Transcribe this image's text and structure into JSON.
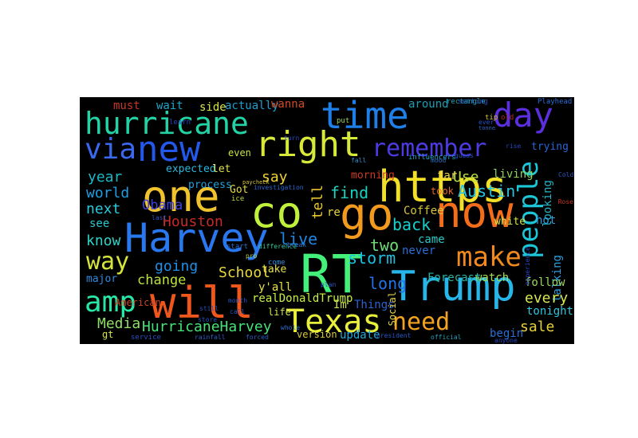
{
  "wordcloud": {
    "background": "#000000",
    "words": [
      {
        "text": "hurricane",
        "color": "#22d3a5",
        "weight": 5
      },
      {
        "text": "time",
        "color": "#1e7fe8",
        "weight": 6
      },
      {
        "text": "day",
        "color": "#5b2fe0",
        "weight": 5
      },
      {
        "text": "via",
        "color": "#3a68f0",
        "weight": 5
      },
      {
        "text": "new",
        "color": "#2358ea",
        "weight": 6
      },
      {
        "text": "right",
        "color": "#d6e83a",
        "weight": 6
      },
      {
        "text": "remember",
        "color": "#4c3be2",
        "weight": 4
      },
      {
        "text": "https",
        "color": "#f2df28",
        "weight": 7
      },
      {
        "text": "one",
        "color": "#f0c22e",
        "weight": 7
      },
      {
        "text": "co",
        "color": "#bff03c",
        "weight": 7
      },
      {
        "text": "go",
        "color": "#f29a1e",
        "weight": 7
      },
      {
        "text": "now",
        "color": "#f36d1a",
        "weight": 7
      },
      {
        "text": "people",
        "color": "#1cc6d6",
        "weight": 5
      },
      {
        "text": "Harvey",
        "color": "#2a78f0",
        "weight": 7
      },
      {
        "text": "way",
        "color": "#d6e53b",
        "weight": 4
      },
      {
        "text": "make",
        "color": "#f08a1f",
        "weight": 5
      },
      {
        "text": "RT",
        "color": "#43f07a",
        "weight": 8
      },
      {
        "text": "Trump",
        "color": "#26b6ea",
        "weight": 7
      },
      {
        "text": "amp",
        "color": "#28e6a8",
        "weight": 5
      },
      {
        "text": "will",
        "color": "#f0571d",
        "weight": 7
      },
      {
        "text": "Texas",
        "color": "#e7ee3b",
        "weight": 6
      },
      {
        "text": "need",
        "color": "#f3a321",
        "weight": 5
      },
      {
        "text": "HurricaneHarvey",
        "color": "#45e37a",
        "weight": 3
      },
      {
        "text": "Austin",
        "color": "#27c3e0",
        "weight": 3
      },
      {
        "text": "Houston",
        "color": "#c62a26",
        "weight": 3
      },
      {
        "text": "world",
        "color": "#1e9fe2",
        "weight": 3
      },
      {
        "text": "year",
        "color": "#18b8c7",
        "weight": 3
      },
      {
        "text": "next",
        "color": "#2bc9dc",
        "weight": 3
      },
      {
        "text": "know",
        "color": "#2cd4c8",
        "weight": 3
      },
      {
        "text": "going",
        "color": "#1f8fe8",
        "weight": 3
      },
      {
        "text": "change",
        "color": "#b9e33e",
        "weight": 3
      },
      {
        "text": "major",
        "color": "#2d8be0",
        "weight": 2
      },
      {
        "text": "Media",
        "color": "#8ee066",
        "weight": 3
      },
      {
        "text": "say",
        "color": "#f2d333",
        "weight": 3
      },
      {
        "text": "find",
        "color": "#17d3c0",
        "weight": 3
      },
      {
        "text": "tell",
        "color": "#e8c42f",
        "weight": 3
      },
      {
        "text": "live",
        "color": "#1d86e4",
        "weight": 3
      },
      {
        "text": "storm",
        "color": "#1bbfe0",
        "weight": 3
      },
      {
        "text": "back",
        "color": "#18d0cc",
        "weight": 3
      },
      {
        "text": "two",
        "color": "#6ddc78",
        "weight": 3
      },
      {
        "text": "long",
        "color": "#2472e6",
        "weight": 3
      },
      {
        "text": "School",
        "color": "#e8d939",
        "weight": 3
      },
      {
        "text": "Obama",
        "color": "#3f43d8",
        "weight": 3
      },
      {
        "text": "Got",
        "color": "#e0d840",
        "weight": 2
      },
      {
        "text": "must",
        "color": "#c9362b",
        "weight": 2
      },
      {
        "text": "wait",
        "color": "#1ea7c8",
        "weight": 2
      },
      {
        "text": "side",
        "color": "#d8e64c",
        "weight": 2
      },
      {
        "text": "actually",
        "color": "#1c9fd0",
        "weight": 2
      },
      {
        "text": "wanna",
        "color": "#d04a22",
        "weight": 2
      },
      {
        "text": "even",
        "color": "#c6e543",
        "weight": 2
      },
      {
        "text": "expected",
        "color": "#2cb6dc",
        "weight": 2
      },
      {
        "text": "let",
        "color": "#dfe34a",
        "weight": 2
      },
      {
        "text": "process",
        "color": "#26a2dc",
        "weight": 2
      },
      {
        "text": "around",
        "color": "#1a9fb8",
        "weight": 2
      },
      {
        "text": "Use",
        "color": "#b7e243",
        "weight": 3
      },
      {
        "text": "took",
        "color": "#e96a2a",
        "weight": 2
      },
      {
        "text": "living",
        "color": "#8ed45a",
        "weight": 2
      },
      {
        "text": "trying",
        "color": "#2a64d6",
        "weight": 2
      },
      {
        "text": "looking",
        "color": "#22b4c8",
        "weight": 2
      },
      {
        "text": "white",
        "color": "#cfe34c",
        "weight": 2
      },
      {
        "text": "hot",
        "color": "#2c9edc",
        "weight": 2
      },
      {
        "text": "came",
        "color": "#2dc8c6",
        "weight": 2
      },
      {
        "text": "never",
        "color": "#2a6ed6",
        "weight": 2
      },
      {
        "text": "talking",
        "color": "#2aa0de",
        "weight": 2
      },
      {
        "text": "follow",
        "color": "#9bd65a",
        "weight": 2
      },
      {
        "text": "every",
        "color": "#d8e84c",
        "weight": 3
      },
      {
        "text": "tonight",
        "color": "#2bc6e0",
        "weight": 2
      },
      {
        "text": "sale",
        "color": "#e7d13a",
        "weight": 3
      },
      {
        "text": "begin",
        "color": "#2a6ed6",
        "weight": 2
      },
      {
        "text": "watch",
        "color": "#a6e04f",
        "weight": 2
      },
      {
        "text": "Forecast",
        "color": "#26b5a3",
        "weight": 2
      },
      {
        "text": "Coffee",
        "color": "#d7c53f",
        "weight": 2
      },
      {
        "text": "realDonaldTrump",
        "color": "#c8ef45",
        "weight": 2
      },
      {
        "text": "y'all",
        "color": "#e8e24a",
        "weight": 2
      },
      {
        "text": "Im",
        "color": "#c8e34a",
        "weight": 2
      },
      {
        "text": "Things",
        "color": "#2a62d2",
        "weight": 2
      },
      {
        "text": "update",
        "color": "#23a7d8",
        "weight": 2
      },
      {
        "text": "version",
        "color": "#d8c745",
        "weight": 2
      },
      {
        "text": "Social",
        "color": "#e4d54a",
        "weight": 2
      },
      {
        "text": "life",
        "color": "#d2e453",
        "weight": 2
      },
      {
        "text": "take",
        "color": "#e7e34c",
        "weight": 2
      },
      {
        "text": "American",
        "color": "#c84422",
        "weight": 2
      },
      {
        "text": "gt",
        "color": "#d8e34a",
        "weight": 2
      },
      {
        "text": "see",
        "color": "#2bc8cf",
        "weight": 2
      },
      {
        "text": "re",
        "color": "#e7d43e",
        "weight": 2
      },
      {
        "text": "far",
        "color": "#e6d34a",
        "weight": 2
      },
      {
        "text": "morning",
        "color": "#cc3a22",
        "weight": 2
      },
      {
        "text": "influencers",
        "color": "#22a4c8",
        "weight": 1
      },
      {
        "text": "put",
        "color": "#9fd35a",
        "weight": 1
      },
      {
        "text": "setting",
        "color": "#244fc4",
        "weight": 1
      },
      {
        "text": "rectangle",
        "color": "#23a0b8",
        "weight": 1
      },
      {
        "text": "Playhead",
        "color": "#2a6ed6",
        "weight": 1
      },
      {
        "text": "start",
        "color": "#2d6fd0",
        "weight": 1
      },
      {
        "text": "investigation",
        "color": "#2a66d2",
        "weight": 1
      },
      {
        "text": "ice",
        "color": "#c5d53e",
        "weight": 1
      },
      {
        "text": "come",
        "color": "#2b8fdf",
        "weight": 1
      },
      {
        "text": "service",
        "color": "#2652c8",
        "weight": 1
      },
      {
        "text": "difference",
        "color": "#3ac89a",
        "weight": 1
      },
      {
        "text": "plan",
        "color": "#2c56c6",
        "weight": 1
      },
      {
        "text": "learn",
        "color": "#2548c2",
        "weight": 1
      },
      {
        "text": "experience",
        "color": "#2a46c0",
        "weight": 1
      },
      {
        "text": "tip",
        "color": "#d4c23a",
        "weight": 1
      },
      {
        "text": "old",
        "color": "#b92c24",
        "weight": 1
      },
      {
        "text": "ever",
        "color": "#2450c2",
        "weight": 1
      },
      {
        "text": "tonne",
        "color": "#2e66c8",
        "weight": 1
      },
      {
        "text": "Cold",
        "color": "#2955c4",
        "weight": 1
      },
      {
        "text": "Rose",
        "color": "#c53522",
        "weight": 1
      },
      {
        "text": "turn",
        "color": "#2a4cc0",
        "weight": 1
      },
      {
        "text": "break",
        "color": "#2d7ad4",
        "weight": 1
      },
      {
        "text": "last",
        "color": "#2a55c4",
        "weight": 1
      },
      {
        "text": "president",
        "color": "#2a58c6",
        "weight": 1
      },
      {
        "text": "official",
        "color": "#27a3be",
        "weight": 1
      },
      {
        "text": "anyone",
        "color": "#2845bd",
        "weight": 1
      },
      {
        "text": "rainfall",
        "color": "#2e5ec8",
        "weight": 1
      },
      {
        "text": "call",
        "color": "#2555c4",
        "weight": 1
      },
      {
        "text": "store",
        "color": "#2553c4",
        "weight": 1
      },
      {
        "text": "still",
        "color": "#244ec2",
        "weight": 1
      },
      {
        "text": "month",
        "color": "#2a56c6",
        "weight": 1
      },
      {
        "text": "whole",
        "color": "#2a70d0",
        "weight": 1
      },
      {
        "text": "paycheck",
        "color": "#d3c23a",
        "weight": 1
      },
      {
        "text": "guess",
        "color": "#2450c2",
        "weight": 1
      },
      {
        "text": "mood",
        "color": "#2a70c8",
        "weight": 1
      },
      {
        "text": "fall",
        "color": "#2c8fce",
        "weight": 1
      },
      {
        "text": "forced",
        "color": "#2e60c8",
        "weight": 1
      },
      {
        "text": "pro",
        "color": "#b6d24a",
        "weight": 1
      },
      {
        "text": "rise",
        "color": "#2747be",
        "weight": 1
      }
    ]
  }
}
